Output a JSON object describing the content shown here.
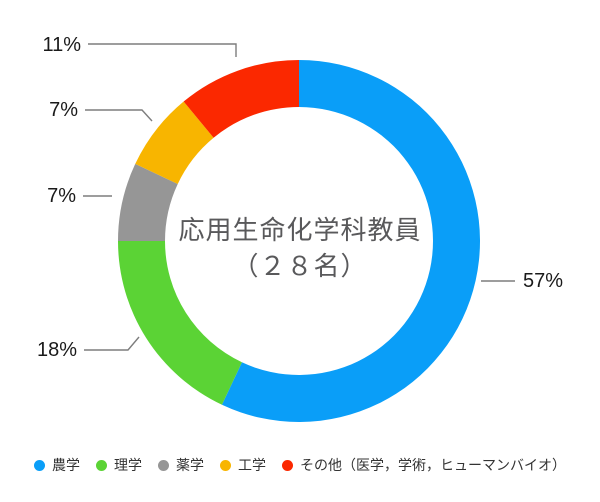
{
  "chart_data": {
    "type": "donut",
    "center_title_lines": [
      "応用生命化学科教員",
      "（２８名）"
    ],
    "total": 28,
    "direction": "clockwise",
    "start_angle_deg": 0,
    "legend_position": "bottom",
    "segments": [
      {
        "label": "農学",
        "value": 57,
        "percent_label": "57%",
        "color": "#0A9EF8"
      },
      {
        "label": "理学",
        "value": 18,
        "percent_label": "18%",
        "color": "#5BD335"
      },
      {
        "label": "薬学",
        "value": 7,
        "percent_label": "7%",
        "color": "#969696"
      },
      {
        "label": "工学",
        "value": 7,
        "percent_label": "7%",
        "color": "#F8B500"
      },
      {
        "label": "その他（医学，学術，ヒューマンバイオ）",
        "value": 11,
        "percent_label": "11%",
        "color": "#FB2800"
      }
    ]
  },
  "styles": {
    "background": "#FFFFFF",
    "center_text_color": "#59595B",
    "percent_label_color": "#1A1A1A",
    "leader_line_color": "#7D7D7D",
    "legend_text_color": "#333333"
  }
}
